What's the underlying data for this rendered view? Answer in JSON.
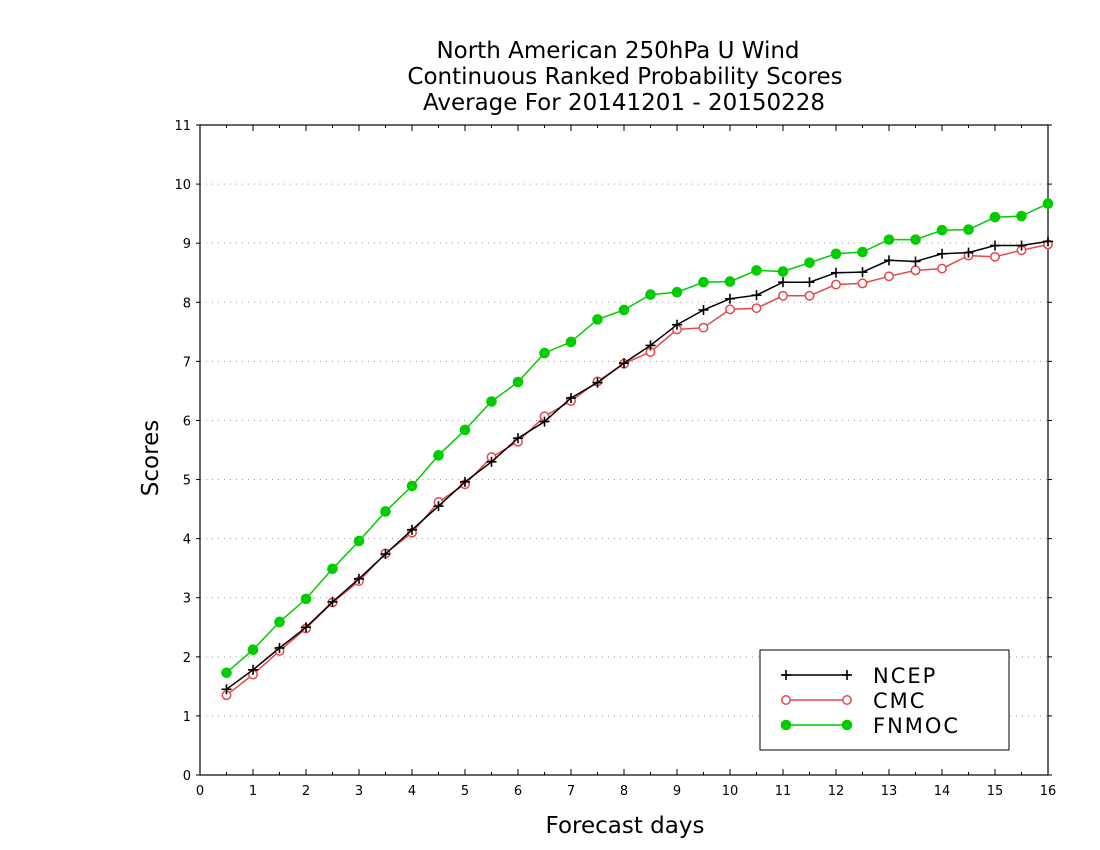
{
  "chart_data": {
    "type": "line",
    "title": [
      "North American 250hPa U Wind",
      "Continuous Ranked Probability Scores",
      "Average For 20141201 - 20150228"
    ],
    "xlabel": "Forecast days",
    "ylabel": "Scores",
    "xlim": [
      0,
      16
    ],
    "ylim": [
      0,
      11
    ],
    "xticks": [
      0,
      1,
      2,
      3,
      4,
      5,
      6,
      7,
      8,
      9,
      10,
      11,
      12,
      13,
      14,
      15,
      16
    ],
    "yticks": [
      0,
      1,
      2,
      3,
      4,
      5,
      6,
      7,
      8,
      9,
      10,
      11
    ],
    "grid": true,
    "legend_position": "bottom-right",
    "x": [
      0.5,
      1,
      1.5,
      2,
      2.5,
      3,
      3.5,
      4,
      4.5,
      5,
      5.5,
      6,
      6.5,
      7,
      7.5,
      8,
      8.5,
      9,
      9.5,
      10,
      10.5,
      11,
      11.5,
      12,
      12.5,
      13,
      13.5,
      14,
      14.5,
      15,
      15.5,
      16
    ],
    "series": [
      {
        "name": "NCEP",
        "color": "#000000",
        "marker": "plus",
        "values": [
          1.45,
          1.78,
          2.15,
          2.5,
          2.93,
          3.32,
          3.74,
          4.15,
          4.55,
          4.96,
          5.3,
          5.7,
          5.98,
          6.38,
          6.64,
          6.97,
          7.27,
          7.62,
          7.87,
          8.06,
          8.12,
          8.34,
          8.34,
          8.5,
          8.51,
          8.71,
          8.69,
          8.82,
          8.84,
          8.96,
          8.96,
          9.03
        ]
      },
      {
        "name": "CMC",
        "color": "#e8474a",
        "marker": "open-circle",
        "values": [
          1.35,
          1.7,
          2.1,
          2.48,
          2.92,
          3.28,
          3.75,
          4.1,
          4.62,
          4.92,
          5.38,
          5.64,
          6.07,
          6.33,
          6.66,
          6.96,
          7.16,
          7.54,
          7.57,
          7.88,
          7.9,
          8.11,
          8.11,
          8.3,
          8.32,
          8.44,
          8.54,
          8.57,
          8.79,
          8.77,
          8.88,
          8.98
        ]
      },
      {
        "name": "FNMOC",
        "color": "#00cc00",
        "marker": "filled-circle",
        "values": [
          1.73,
          2.12,
          2.59,
          2.98,
          3.49,
          3.96,
          4.46,
          4.89,
          5.41,
          5.84,
          6.32,
          6.65,
          7.14,
          7.33,
          7.71,
          7.87,
          8.13,
          8.17,
          8.34,
          8.35,
          8.54,
          8.52,
          8.67,
          8.82,
          8.85,
          9.06,
          9.06,
          9.22,
          9.23,
          9.44,
          9.46,
          9.67
        ]
      }
    ]
  }
}
